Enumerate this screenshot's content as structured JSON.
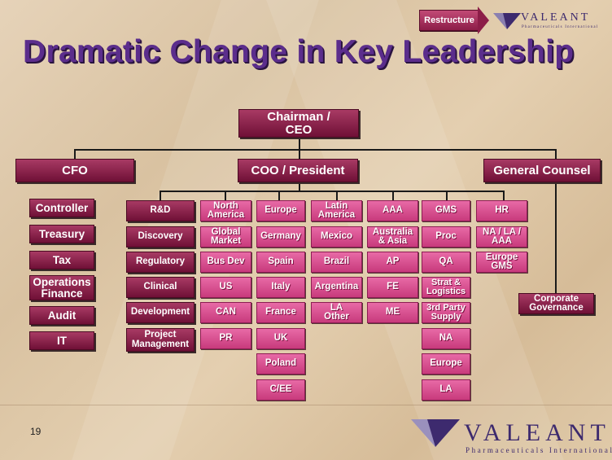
{
  "title": "Dramatic Change in Key Leadership",
  "restructure_label": "Restructure",
  "page_number": "19",
  "logo": {
    "name": "VALEANT",
    "tagline": "Pharmaceuticals International"
  },
  "colors": {
    "exec_box": "#8c1d48",
    "unit_box": "#d84a8c",
    "title": "#5b2d8c"
  },
  "chart": {
    "ceo": "Chairman / CEO",
    "level1": [
      "CFO",
      "COO / President",
      "General Counsel"
    ],
    "cfo_reports": [
      "Controller",
      "Treasury",
      "Tax",
      "Operations Finance",
      "Audit",
      "IT"
    ],
    "coo_columns": {
      "functions": [
        "R&D",
        "Discovery",
        "Regulatory",
        "Clinical",
        "Development",
        "Project Management"
      ],
      "north_america": [
        "North America",
        "Global Market",
        "Bus Dev",
        "US",
        "CAN",
        "PR"
      ],
      "europe": [
        "Europe",
        "Germany",
        "Spain",
        "Italy",
        "France",
        "UK",
        "Poland",
        "C/EE"
      ],
      "latin_america": [
        "Latin America",
        "Mexico",
        "Brazil",
        "Argentina",
        "LA Other"
      ],
      "aaa": [
        "AAA",
        "Australia & Asia",
        "AP",
        "FE",
        "ME"
      ],
      "gms": [
        "GMS",
        "Proc",
        "QA",
        "Strat & Logistics",
        "3rd Party Supply",
        "NA",
        "Europe",
        "LA"
      ],
      "hr": [
        "HR",
        "NA / LA / AAA",
        "Europe GMS"
      ]
    },
    "gc_reports": [
      "Corporate Governance"
    ]
  }
}
